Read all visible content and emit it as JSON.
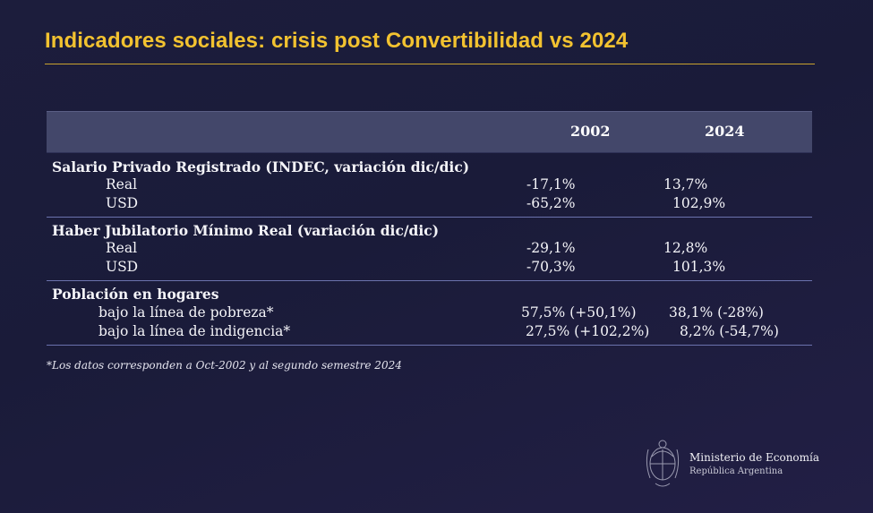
{
  "title": "Indicadores sociales: crisis post Convertibilidad vs 2024",
  "table": {
    "headers": {
      "col1": "2002",
      "col2": "2024"
    },
    "sections": [
      {
        "title": "Salario Privado Registrado (INDEC, variación dic/dic)",
        "rows": [
          {
            "label": "Real",
            "v2002": "-17,1%",
            "v2024": "13,7%"
          },
          {
            "label": "USD",
            "v2002": "-65,2%",
            "v2024": "102,9%"
          }
        ]
      },
      {
        "title": "Haber Jubilatorio Mínimo Real (variación dic/dic)",
        "rows": [
          {
            "label": "Real",
            "v2002": "-29,1%",
            "v2024": "12,8%"
          },
          {
            "label": "USD",
            "v2002": "-70,3%",
            "v2024": "101,3%"
          }
        ]
      },
      {
        "title": "Población en hogares",
        "rows": [
          {
            "label": "bajo la línea de pobreza*",
            "v2002": "57,5% (+50,1%)",
            "v2024": "38,1% (-28%)"
          },
          {
            "label": "bajo la línea de indigencia*",
            "v2002": "27,5% (+102,2%)",
            "v2024": "8,2% (-54,7%)"
          }
        ]
      }
    ]
  },
  "footnote": "*Los datos corresponden a Oct-2002 y al segundo semestre 2024",
  "branding": {
    "ministry": "Ministerio de Economía",
    "country": "República Argentina",
    "logo_icon": "coat-of-arms-icon"
  },
  "colors": {
    "title": "#f2c230",
    "background": "#1c1d3c",
    "header_bar": "#43476a",
    "separator": "#6b72ad"
  }
}
